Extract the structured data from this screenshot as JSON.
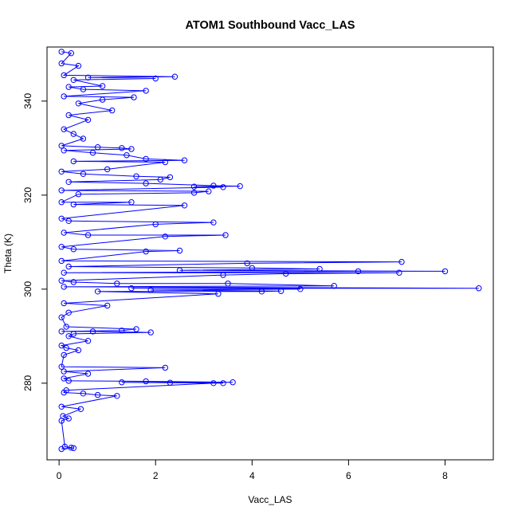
{
  "chart_data": {
    "type": "scatter",
    "title": "ATOM1 Southbound Vacc_LAS",
    "xlabel": "Vacc_LAS",
    "ylabel": "Theta (K)",
    "xlim": [
      -0.25,
      9.0
    ],
    "ylim": [
      263.7,
      351.5
    ],
    "xticks": [
      0,
      2,
      4,
      6,
      8
    ],
    "yticks": [
      280,
      300,
      320,
      340
    ],
    "grid": false,
    "legend": "none",
    "colors": {
      "series": "#0000ff",
      "axes": "#000000"
    },
    "series_style": "points-and-lines",
    "series": [
      {
        "points": [
          [
            0.05,
            266
          ],
          [
            0.25,
            266.3
          ],
          [
            0.12,
            266.5
          ],
          [
            0.3,
            266.2
          ],
          [
            0.05,
            272
          ],
          [
            0.2,
            272.5
          ],
          [
            0.08,
            273
          ],
          [
            0.45,
            274.5
          ],
          [
            0.05,
            275
          ],
          [
            0.1,
            278
          ],
          [
            0.8,
            277.5
          ],
          [
            1.2,
            277.3
          ],
          [
            0.5,
            277.8
          ],
          [
            0.15,
            278.5
          ],
          [
            1.3,
            280.2
          ],
          [
            1.8,
            280.4
          ],
          [
            2.3,
            280.1
          ],
          [
            3.2,
            280.0
          ],
          [
            3.4,
            280.0
          ],
          [
            3.6,
            280.2
          ],
          [
            0.2,
            280.5
          ],
          [
            0.1,
            281
          ],
          [
            0.6,
            282
          ],
          [
            0.1,
            282.5
          ],
          [
            2.2,
            283.3
          ],
          [
            0.05,
            283.5
          ],
          [
            0.1,
            286
          ],
          [
            0.4,
            287
          ],
          [
            0.15,
            287.5
          ],
          [
            0.05,
            288
          ],
          [
            0.2,
            290
          ],
          [
            0.7,
            291
          ],
          [
            1.3,
            291.2
          ],
          [
            1.6,
            291.5
          ],
          [
            1.9,
            290.8
          ],
          [
            0.3,
            290.5
          ],
          [
            0.05,
            291
          ],
          [
            0.6,
            289
          ],
          [
            0.15,
            292
          ],
          [
            0.05,
            294
          ],
          [
            0.2,
            295
          ],
          [
            1.0,
            296.5
          ],
          [
            0.1,
            297
          ],
          [
            0.8,
            299.5
          ],
          [
            1.5,
            300.2
          ],
          [
            1.9,
            299.8
          ],
          [
            3.3,
            299.0
          ],
          [
            4.2,
            299.5
          ],
          [
            4.6,
            299.6
          ],
          [
            5.0,
            300.0
          ],
          [
            8.7,
            300.2
          ],
          [
            0.1,
            300.5
          ],
          [
            5.7,
            300.7
          ],
          [
            3.5,
            301.2
          ],
          [
            0.3,
            301.5
          ],
          [
            1.2,
            301.2
          ],
          [
            0.05,
            301.8
          ],
          [
            3.4,
            303.0
          ],
          [
            4.7,
            303.3
          ],
          [
            6.2,
            303.8
          ],
          [
            7.05,
            303.5
          ],
          [
            8.0,
            303.8
          ],
          [
            0.1,
            303.5
          ],
          [
            2.5,
            304.0
          ],
          [
            4.0,
            304.5
          ],
          [
            5.4,
            304.3
          ],
          [
            0.2,
            304.8
          ],
          [
            7.1,
            305.8
          ],
          [
            3.9,
            305.5
          ],
          [
            0.05,
            306
          ],
          [
            1.8,
            308
          ],
          [
            2.5,
            308.2
          ],
          [
            0.3,
            308.5
          ],
          [
            0.05,
            309
          ],
          [
            3.45,
            311.5
          ],
          [
            2.2,
            311.2
          ],
          [
            0.6,
            311.5
          ],
          [
            0.1,
            312
          ],
          [
            3.2,
            314.2
          ],
          [
            2.0,
            313.8
          ],
          [
            0.2,
            314.5
          ],
          [
            0.05,
            315
          ],
          [
            2.6,
            317.8
          ],
          [
            1.5,
            318.5
          ],
          [
            0.3,
            318.0
          ],
          [
            0.05,
            318.5
          ],
          [
            2.8,
            320.5
          ],
          [
            3.1,
            320.8
          ],
          [
            0.4,
            320.2
          ],
          [
            0.05,
            321
          ],
          [
            3.4,
            321.7
          ],
          [
            3.75,
            321.9
          ],
          [
            3.2,
            322.0
          ],
          [
            2.8,
            321.8
          ],
          [
            1.8,
            322.5
          ],
          [
            0.2,
            322.8
          ],
          [
            2.1,
            323.3
          ],
          [
            2.3,
            323.8
          ],
          [
            1.6,
            324.0
          ],
          [
            0.5,
            324.5
          ],
          [
            0.05,
            325
          ],
          [
            1.0,
            325.5
          ],
          [
            2.2,
            327.0
          ],
          [
            2.6,
            327.4
          ],
          [
            1.8,
            327.7
          ],
          [
            0.3,
            327.2
          ],
          [
            1.4,
            328.5
          ],
          [
            0.7,
            329.0
          ],
          [
            0.1,
            329.5
          ],
          [
            1.3,
            330.0
          ],
          [
            1.5,
            329.8
          ],
          [
            0.8,
            330.2
          ],
          [
            0.05,
            330.5
          ],
          [
            0.5,
            332
          ],
          [
            0.3,
            333
          ],
          [
            0.1,
            334
          ],
          [
            0.6,
            336
          ],
          [
            0.2,
            337
          ],
          [
            1.1,
            338
          ],
          [
            0.4,
            339.5
          ],
          [
            0.9,
            340.3
          ],
          [
            1.55,
            340.8
          ],
          [
            0.1,
            341
          ],
          [
            1.8,
            342.2
          ],
          [
            0.5,
            342.5
          ],
          [
            0.2,
            343
          ],
          [
            0.9,
            343.2
          ],
          [
            0.3,
            344.5
          ],
          [
            2.0,
            344.8
          ],
          [
            2.4,
            345.2
          ],
          [
            0.6,
            345.0
          ],
          [
            0.1,
            345.5
          ],
          [
            0.4,
            347.5
          ],
          [
            0.05,
            348
          ],
          [
            0.25,
            350.2
          ],
          [
            0.05,
            350.5
          ]
        ]
      }
    ]
  }
}
